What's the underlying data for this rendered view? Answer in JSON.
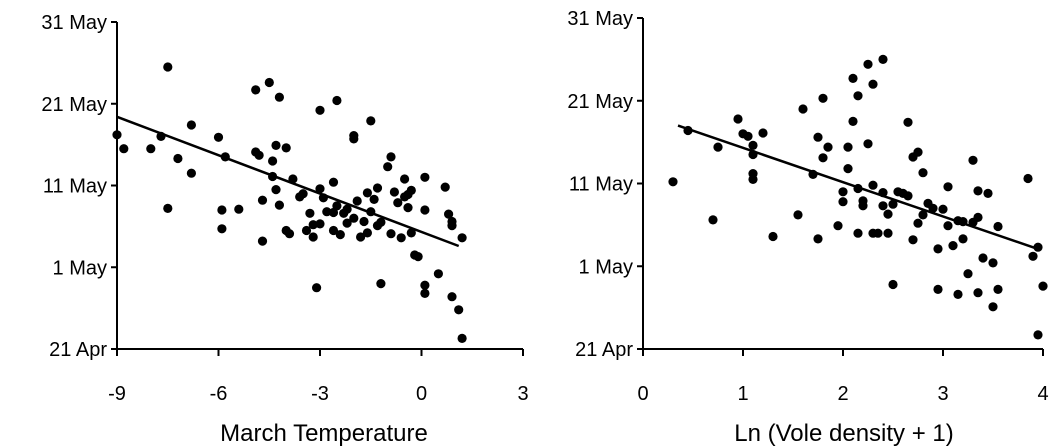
{
  "chart_data": [
    {
      "type": "scatter",
      "xlabel": "March Temperature",
      "xlim": [
        -9,
        3
      ],
      "xticks": [
        "-9",
        "-6",
        "-3",
        "0",
        "3"
      ],
      "xtick_values": [
        -9,
        -6,
        -3,
        0,
        3
      ],
      "ylim": [
        0,
        40
      ],
      "yticks": [
        "21 Apr",
        "1 May",
        "11 May",
        "21 May",
        "31 May"
      ],
      "ytick_values": [
        0,
        10,
        20,
        30,
        40
      ],
      "ylabel": "",
      "trendline": {
        "x": [
          -9,
          1.1
        ],
        "y": [
          28.4,
          12.6
        ]
      },
      "points": [
        [
          -9.0,
          26.2
        ],
        [
          -8.8,
          24.5
        ],
        [
          -8.0,
          24.5
        ],
        [
          -7.7,
          26.0
        ],
        [
          -7.5,
          34.5
        ],
        [
          -7.5,
          17.2
        ],
        [
          -7.2,
          23.3
        ],
        [
          -6.8,
          21.5
        ],
        [
          -6.8,
          27.4
        ],
        [
          -6.0,
          25.9
        ],
        [
          -5.8,
          23.5
        ],
        [
          -5.9,
          17.0
        ],
        [
          -5.9,
          14.7
        ],
        [
          -5.4,
          17.1
        ],
        [
          -4.9,
          31.7
        ],
        [
          -4.9,
          24.1
        ],
        [
          -4.8,
          23.7
        ],
        [
          -4.7,
          18.2
        ],
        [
          -4.7,
          13.2
        ],
        [
          -4.5,
          32.6
        ],
        [
          -4.4,
          21.1
        ],
        [
          -4.4,
          23.0
        ],
        [
          -4.3,
          19.5
        ],
        [
          -4.3,
          24.9
        ],
        [
          -4.2,
          30.8
        ],
        [
          -4.2,
          17.6
        ],
        [
          -4.0,
          24.6
        ],
        [
          -4.0,
          14.5
        ],
        [
          -3.9,
          14.1
        ],
        [
          -3.8,
          20.8
        ],
        [
          -3.6,
          18.6
        ],
        [
          -3.5,
          19.0
        ],
        [
          -3.4,
          14.5
        ],
        [
          -3.3,
          16.6
        ],
        [
          -3.2,
          15.2
        ],
        [
          -3.2,
          13.7
        ],
        [
          -3.1,
          7.5
        ],
        [
          -3.0,
          19.6
        ],
        [
          -3.0,
          29.2
        ],
        [
          -3.0,
          15.3
        ],
        [
          -2.9,
          18.5
        ],
        [
          -2.8,
          16.8
        ],
        [
          -2.6,
          20.4
        ],
        [
          -2.6,
          16.7
        ],
        [
          -2.6,
          14.5
        ],
        [
          -2.5,
          30.4
        ],
        [
          -2.5,
          17.5
        ],
        [
          -2.4,
          14.0
        ],
        [
          -2.3,
          16.6
        ],
        [
          -2.2,
          17.1
        ],
        [
          -2.2,
          15.4
        ],
        [
          -2.0,
          16.0
        ],
        [
          -2.0,
          26.1
        ],
        [
          -2.0,
          25.7
        ],
        [
          -1.9,
          18.1
        ],
        [
          -1.8,
          13.7
        ],
        [
          -1.7,
          15.6
        ],
        [
          -1.6,
          19.1
        ],
        [
          -1.6,
          14.2
        ],
        [
          -1.5,
          16.8
        ],
        [
          -1.5,
          27.9
        ],
        [
          -1.4,
          18.3
        ],
        [
          -1.3,
          19.7
        ],
        [
          -1.3,
          15.1
        ],
        [
          -1.2,
          8.0
        ],
        [
          -1.2,
          15.5
        ],
        [
          -1.0,
          22.3
        ],
        [
          -0.9,
          23.5
        ],
        [
          -0.9,
          14.1
        ],
        [
          -0.8,
          19.2
        ],
        [
          -0.7,
          17.9
        ],
        [
          -0.6,
          13.6
        ],
        [
          -0.5,
          20.8
        ],
        [
          -0.5,
          18.6
        ],
        [
          -0.4,
          18.9
        ],
        [
          -0.4,
          17.3
        ],
        [
          -0.3,
          19.4
        ],
        [
          -0.3,
          14.2
        ],
        [
          -0.2,
          11.5
        ],
        [
          -0.1,
          11.3
        ],
        [
          0.1,
          21.0
        ],
        [
          0.1,
          17.0
        ],
        [
          0.1,
          7.8
        ],
        [
          0.1,
          6.8
        ],
        [
          0.5,
          9.2
        ],
        [
          0.7,
          19.8
        ],
        [
          0.8,
          16.5
        ],
        [
          0.9,
          15.6
        ],
        [
          0.9,
          15.1
        ],
        [
          0.9,
          6.4
        ],
        [
          1.2,
          13.6
        ],
        [
          1.1,
          4.8
        ],
        [
          1.2,
          1.3
        ]
      ]
    },
    {
      "type": "scatter",
      "xlabel": "Ln (Vole density + 1)",
      "xlim": [
        0,
        4
      ],
      "xticks": [
        "0",
        "1",
        "2",
        "3",
        "4"
      ],
      "xtick_values": [
        0,
        1,
        2,
        3,
        4
      ],
      "ylim": [
        0,
        40
      ],
      "yticks": [
        "21 Apr",
        "1 May",
        "11 May",
        "21 May",
        "31 May"
      ],
      "ytick_values": [
        0,
        10,
        20,
        30,
        40
      ],
      "ylabel": "",
      "trendline": {
        "x": [
          0.35,
          3.97
        ],
        "y": [
          27.0,
          12.0
        ]
      },
      "points": [
        [
          0.3,
          20.2
        ],
        [
          0.45,
          26.4
        ],
        [
          0.7,
          15.6
        ],
        [
          0.75,
          24.4
        ],
        [
          0.95,
          27.8
        ],
        [
          1.0,
          26.0
        ],
        [
          1.05,
          25.7
        ],
        [
          1.1,
          23.5
        ],
        [
          1.1,
          21.2
        ],
        [
          1.1,
          20.5
        ],
        [
          1.1,
          24.6
        ],
        [
          1.2,
          26.1
        ],
        [
          1.3,
          13.6
        ],
        [
          1.55,
          16.2
        ],
        [
          1.6,
          29.0
        ],
        [
          1.7,
          21.1
        ],
        [
          1.75,
          25.6
        ],
        [
          1.75,
          13.3
        ],
        [
          1.8,
          30.3
        ],
        [
          1.8,
          23.1
        ],
        [
          1.85,
          24.4
        ],
        [
          1.95,
          14.9
        ],
        [
          2.0,
          19.0
        ],
        [
          2.0,
          17.8
        ],
        [
          2.05,
          21.8
        ],
        [
          2.05,
          24.4
        ],
        [
          2.1,
          32.7
        ],
        [
          2.1,
          27.5
        ],
        [
          2.15,
          30.6
        ],
        [
          2.15,
          19.4
        ],
        [
          2.15,
          14.0
        ],
        [
          2.2,
          17.9
        ],
        [
          2.2,
          17.3
        ],
        [
          2.25,
          24.8
        ],
        [
          2.25,
          34.4
        ],
        [
          2.3,
          14.0
        ],
        [
          2.3,
          32.0
        ],
        [
          2.3,
          19.8
        ],
        [
          2.35,
          14.0
        ],
        [
          2.4,
          17.3
        ],
        [
          2.4,
          18.9
        ],
        [
          2.4,
          35.0
        ],
        [
          2.45,
          16.3
        ],
        [
          2.45,
          14.0
        ],
        [
          2.5,
          17.5
        ],
        [
          2.5,
          7.8
        ],
        [
          2.55,
          19.0
        ],
        [
          2.6,
          18.8
        ],
        [
          2.65,
          27.4
        ],
        [
          2.65,
          18.5
        ],
        [
          2.7,
          13.2
        ],
        [
          2.7,
          23.2
        ],
        [
          2.75,
          23.8
        ],
        [
          2.75,
          15.2
        ],
        [
          2.8,
          21.3
        ],
        [
          2.8,
          16.2
        ],
        [
          2.85,
          17.6
        ],
        [
          2.9,
          17.0
        ],
        [
          2.95,
          12.1
        ],
        [
          2.95,
          7.2
        ],
        [
          3.0,
          16.9
        ],
        [
          3.05,
          19.6
        ],
        [
          3.05,
          14.9
        ],
        [
          3.1,
          12.5
        ],
        [
          3.15,
          6.6
        ],
        [
          3.15,
          15.5
        ],
        [
          3.2,
          15.4
        ],
        [
          3.2,
          13.3
        ],
        [
          3.25,
          9.1
        ],
        [
          3.3,
          22.8
        ],
        [
          3.3,
          15.3
        ],
        [
          3.35,
          19.1
        ],
        [
          3.35,
          15.9
        ],
        [
          3.35,
          6.8
        ],
        [
          3.4,
          11.0
        ],
        [
          3.45,
          18.8
        ],
        [
          3.5,
          5.1
        ],
        [
          3.5,
          10.4
        ],
        [
          3.55,
          7.2
        ],
        [
          3.55,
          14.8
        ],
        [
          3.85,
          20.6
        ],
        [
          3.9,
          11.2
        ],
        [
          3.95,
          1.7
        ],
        [
          3.95,
          12.3
        ],
        [
          4.0,
          7.6
        ]
      ]
    }
  ]
}
